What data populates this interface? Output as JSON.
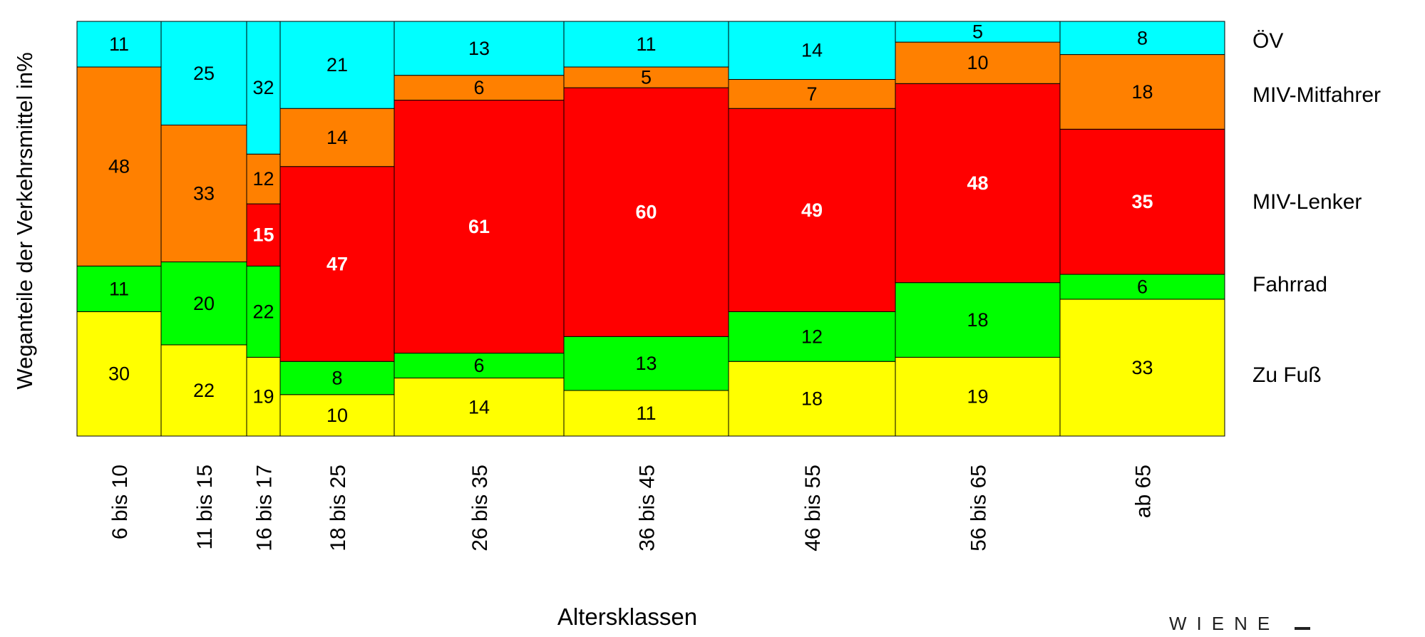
{
  "chart_data": {
    "type": "bar",
    "subtype": "stacked-100-variable-width",
    "title": "",
    "xlabel": "Altersklassen",
    "ylabel": "Weganteile der Verkehrsmittel in%",
    "ylim": [
      0,
      100
    ],
    "grid": false,
    "legend_placement": "right",
    "categories": [
      "6 bis 10",
      "11 bis 15",
      "16 bis 17",
      "18 bis 25",
      "26 bis 35",
      "36 bis 45",
      "46 bis 55",
      "56 bis 65",
      "ab 65"
    ],
    "series": [
      {
        "name": "Zu Fuß",
        "color": "#FFFF00",
        "values": [
          30,
          22,
          19,
          10,
          14,
          11,
          18,
          19,
          33
        ]
      },
      {
        "name": "Fahrrad",
        "color": "#00FF00",
        "values": [
          11,
          20,
          22,
          8,
          6,
          13,
          12,
          18,
          6
        ]
      },
      {
        "name": "MIV-Lenker",
        "color": "#FF0000",
        "values": [
          null,
          null,
          15,
          47,
          61,
          60,
          49,
          48,
          35
        ]
      },
      {
        "name": "MIV-Mitfahrer",
        "color": "#FF8000",
        "values": [
          48,
          33,
          12,
          14,
          6,
          5,
          7,
          10,
          18
        ]
      },
      {
        "name": "ÖV",
        "color": "#00FFFF",
        "values": [
          11,
          25,
          32,
          21,
          13,
          11,
          14,
          5,
          8
        ]
      }
    ]
  },
  "logo_text": "WIENE"
}
